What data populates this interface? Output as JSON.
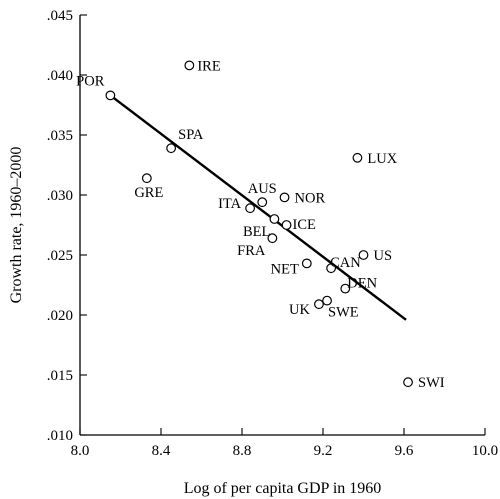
{
  "chart_data": {
    "type": "scatter",
    "title": "",
    "xlabel": "Log of per capita GDP in 1960",
    "ylabel": "Growth rate, 1960–2000",
    "xlim": [
      8.0,
      10.0
    ],
    "ylim": [
      0.01,
      0.045
    ],
    "xticks": [
      "8.0",
      "8.4",
      "8.8",
      "9.2",
      "9.6",
      "10.0"
    ],
    "yticks": [
      ".010",
      ".015",
      ".020",
      ".025",
      ".030",
      ".035",
      ".040",
      ".045"
    ],
    "grid": false,
    "legend": "none",
    "points": [
      {
        "label": "POR",
        "x": 8.15,
        "y": 0.0383
      },
      {
        "label": "IRE",
        "x": 8.54,
        "y": 0.0408
      },
      {
        "label": "SPA",
        "x": 8.45,
        "y": 0.0339
      },
      {
        "label": "GRE",
        "x": 8.33,
        "y": 0.0314
      },
      {
        "label": "LUX",
        "x": 9.37,
        "y": 0.0331
      },
      {
        "label": "AUS",
        "x": 8.9,
        "y": 0.0294
      },
      {
        "label": "NOR",
        "x": 9.01,
        "y": 0.0298
      },
      {
        "label": "ITA",
        "x": 8.84,
        "y": 0.0289
      },
      {
        "label": "BEL",
        "x": 8.96,
        "y": 0.028
      },
      {
        "label": "ICE",
        "x": 9.02,
        "y": 0.0275
      },
      {
        "label": "FRA",
        "x": 8.95,
        "y": 0.0264
      },
      {
        "label": "CAN",
        "x": 9.24,
        "y": 0.0239
      },
      {
        "label": "US",
        "x": 9.4,
        "y": 0.025
      },
      {
        "label": "NET",
        "x": 9.12,
        "y": 0.0243
      },
      {
        "label": "DEN",
        "x": 9.31,
        "y": 0.0222
      },
      {
        "label": "UK",
        "x": 9.18,
        "y": 0.0209
      },
      {
        "label": "SWE",
        "x": 9.22,
        "y": 0.0212
      },
      {
        "label": "SWI",
        "x": 9.62,
        "y": 0.0144
      }
    ],
    "fit_line": {
      "x": [
        8.15,
        9.61
      ],
      "y": [
        0.0383,
        0.0196
      ]
    }
  }
}
